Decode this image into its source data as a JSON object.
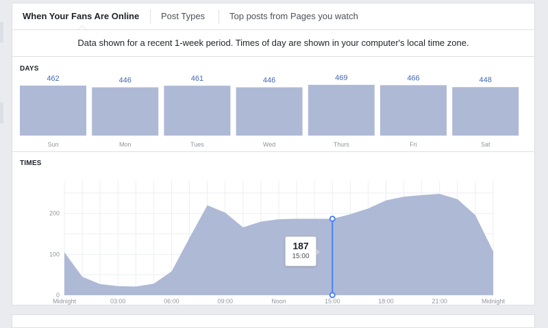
{
  "tabs": [
    {
      "label": "When Your Fans Are Online",
      "active": true
    },
    {
      "label": "Post Types",
      "active": false
    },
    {
      "label": "Top posts from Pages you watch",
      "active": false
    }
  ],
  "notice": "Data shown for a recent 1-week period. Times of day are shown in your computer's local time zone.",
  "colors": {
    "bar_fill": "#aeb9d6",
    "area_fill": "#aeb9d6",
    "accent": "#4a80f6",
    "value_text": "#4267b2"
  },
  "chart_data": [
    {
      "type": "bar",
      "title": "DAYS",
      "categories": [
        "Sun",
        "Mon",
        "Tues",
        "Wed",
        "Thurs",
        "Fri",
        "Sat"
      ],
      "values": [
        462,
        446,
        461,
        446,
        469,
        466,
        448
      ],
      "value_labels": [
        "462",
        "446",
        "461",
        "446",
        "469",
        "466",
        "448"
      ]
    },
    {
      "type": "area",
      "title": "TIMES",
      "x": [
        0,
        1,
        2,
        3,
        4,
        5,
        6,
        7,
        8,
        9,
        10,
        11,
        12,
        13,
        14,
        15,
        16,
        17,
        18,
        19,
        20,
        21,
        22,
        23,
        24
      ],
      "values": [
        105,
        45,
        27,
        22,
        21,
        28,
        58,
        140,
        220,
        202,
        166,
        180,
        186,
        187,
        187,
        187,
        198,
        212,
        232,
        241,
        245,
        248,
        235,
        196,
        107
      ],
      "ylim": [
        0,
        280
      ],
      "yticks": [
        0,
        100,
        200
      ],
      "xtick_positions": [
        0,
        3,
        6,
        9,
        12,
        15,
        18,
        21,
        24
      ],
      "xtick_labels": [
        "Midnight",
        "03:00",
        "06:00",
        "09:00",
        "Noon",
        "15:00",
        "18:00",
        "21:00",
        "Midnight"
      ],
      "highlight": {
        "x": 15,
        "value": "187",
        "label": "15:00"
      }
    }
  ]
}
